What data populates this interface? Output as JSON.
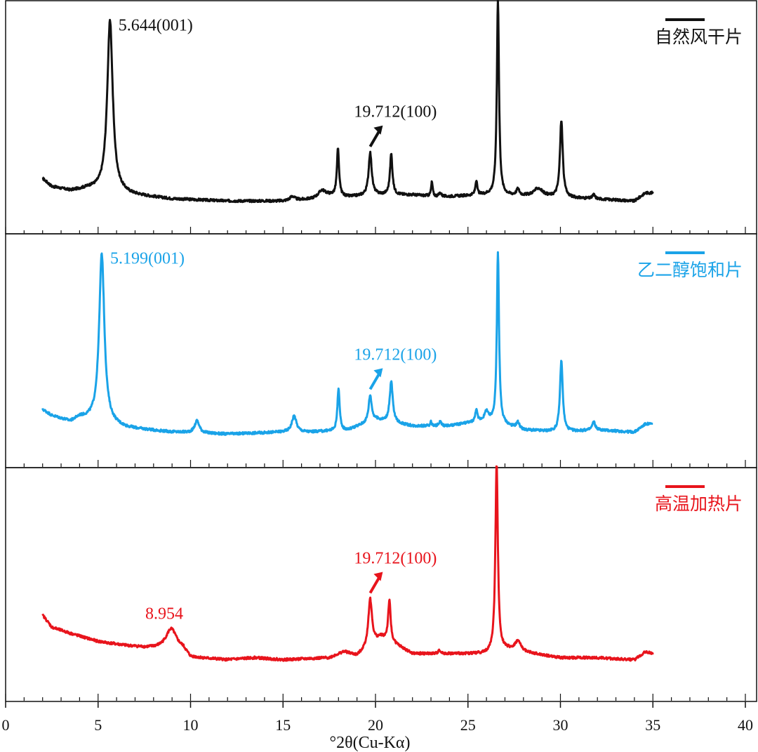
{
  "chart_data": {
    "type": "line",
    "xlabel": "°2θ(Cu-Kα)",
    "xlim": [
      0,
      40
    ],
    "x_ticks": [
      "0",
      "5",
      "10",
      "15",
      "20",
      "25",
      "30",
      "35",
      "40"
    ],
    "x_tick_values": [
      0,
      5,
      10,
      15,
      20,
      25,
      30,
      35,
      40
    ],
    "grid": false,
    "legend_placement": "top-right of each panel",
    "panels": [
      {
        "name": "自然风干片",
        "color": "#111111",
        "baseline": 0.05,
        "base_points": [
          [
            2.0,
            0.14
          ],
          [
            2.5,
            0.1
          ],
          [
            3.5,
            0.08
          ],
          [
            4.5,
            0.09
          ],
          [
            6.8,
            0.06
          ],
          [
            9,
            0.04
          ],
          [
            12,
            0.03
          ],
          [
            15,
            0.03
          ],
          [
            16.5,
            0.04
          ],
          [
            17.4,
            0.06
          ],
          [
            18.5,
            0.05
          ],
          [
            20,
            0.06
          ],
          [
            22,
            0.06
          ],
          [
            23.5,
            0.05
          ],
          [
            26,
            0.06
          ],
          [
            29,
            0.05
          ],
          [
            32,
            0.04
          ],
          [
            34,
            0.03
          ],
          [
            34.6,
            0.07
          ],
          [
            35,
            0.07
          ]
        ],
        "peaks": [
          {
            "x": 5.644,
            "h": 0.84,
            "w": 0.18
          },
          {
            "x": 15.5,
            "h": 0.02,
            "w": 0.15
          },
          {
            "x": 17.1,
            "h": 0.03,
            "w": 0.2
          },
          {
            "x": 17.97,
            "h": 0.23,
            "w": 0.07
          },
          {
            "x": 19.712,
            "h": 0.21,
            "w": 0.1
          },
          {
            "x": 20.85,
            "h": 0.2,
            "w": 0.08
          },
          {
            "x": 23.05,
            "h": 0.07,
            "w": 0.05
          },
          {
            "x": 23.5,
            "h": 0.02,
            "w": 0.08
          },
          {
            "x": 25.45,
            "h": 0.07,
            "w": 0.06
          },
          {
            "x": 26.62,
            "h": 0.96,
            "w": 0.07
          },
          {
            "x": 27.7,
            "h": 0.03,
            "w": 0.1
          },
          {
            "x": 28.8,
            "h": 0.04,
            "w": 0.3
          },
          {
            "x": 30.05,
            "h": 0.38,
            "w": 0.09
          },
          {
            "x": 31.8,
            "h": 0.02,
            "w": 0.08
          }
        ],
        "annotations": [
          {
            "text": "5.644(001)",
            "x": 5.644,
            "arrow": false
          },
          {
            "text": "19.712(100)",
            "x": 19.712,
            "arrow": true
          }
        ]
      },
      {
        "name": "乙二醇饱和片",
        "color": "#1aa3e8",
        "baseline": 0.05,
        "base_points": [
          [
            2.0,
            0.15
          ],
          [
            2.5,
            0.12
          ],
          [
            3.5,
            0.09
          ],
          [
            4.0,
            0.11
          ],
          [
            6.5,
            0.06
          ],
          [
            9,
            0.04
          ],
          [
            12,
            0.03
          ],
          [
            15,
            0.04
          ],
          [
            16.5,
            0.04
          ],
          [
            18.5,
            0.05
          ],
          [
            20,
            0.1
          ],
          [
            22,
            0.07
          ],
          [
            24,
            0.07
          ],
          [
            26,
            0.1
          ],
          [
            28,
            0.05
          ],
          [
            30,
            0.04
          ],
          [
            32,
            0.05
          ],
          [
            34,
            0.04
          ],
          [
            34.6,
            0.08
          ],
          [
            35,
            0.08
          ]
        ],
        "peaks": [
          {
            "x": 5.199,
            "h": 0.83,
            "w": 0.17
          },
          {
            "x": 10.35,
            "h": 0.06,
            "w": 0.15
          },
          {
            "x": 15.6,
            "h": 0.08,
            "w": 0.15
          },
          {
            "x": 18.0,
            "h": 0.21,
            "w": 0.07
          },
          {
            "x": 19.712,
            "h": 0.13,
            "w": 0.1
          },
          {
            "x": 20.85,
            "h": 0.2,
            "w": 0.1
          },
          {
            "x": 23.0,
            "h": 0.02,
            "w": 0.05
          },
          {
            "x": 23.5,
            "h": 0.02,
            "w": 0.08
          },
          {
            "x": 25.45,
            "h": 0.06,
            "w": 0.06
          },
          {
            "x": 26.0,
            "h": 0.04,
            "w": 0.1
          },
          {
            "x": 26.62,
            "h": 0.84,
            "w": 0.07
          },
          {
            "x": 27.7,
            "h": 0.03,
            "w": 0.1
          },
          {
            "x": 30.05,
            "h": 0.35,
            "w": 0.09
          },
          {
            "x": 31.8,
            "h": 0.04,
            "w": 0.1
          }
        ],
        "annotations": [
          {
            "text": "5.199(001)",
            "x": 5.199,
            "arrow": false
          },
          {
            "text": "19.712(100)",
            "x": 19.712,
            "arrow": true
          }
        ]
      },
      {
        "name": "高温加热片",
        "color": "#e8141c",
        "baseline": 0.05,
        "base_points": [
          [
            2.0,
            0.29
          ],
          [
            2.5,
            0.23
          ],
          [
            3.5,
            0.2
          ],
          [
            5,
            0.16
          ],
          [
            6.5,
            0.14
          ],
          [
            7.5,
            0.13
          ],
          [
            9.6,
            0.12
          ],
          [
            10,
            0.08
          ],
          [
            12,
            0.07
          ],
          [
            13.5,
            0.08
          ],
          [
            15,
            0.07
          ],
          [
            17.5,
            0.08
          ],
          [
            18.3,
            0.11
          ],
          [
            19.0,
            0.09
          ],
          [
            20.3,
            0.18
          ],
          [
            21.2,
            0.14
          ],
          [
            22,
            0.1
          ],
          [
            24,
            0.1
          ],
          [
            26,
            0.1
          ],
          [
            27.0,
            0.12
          ],
          [
            28.5,
            0.1
          ],
          [
            30,
            0.08
          ],
          [
            32,
            0.08
          ],
          [
            34,
            0.07
          ],
          [
            34.6,
            0.11
          ],
          [
            35,
            0.1
          ]
        ],
        "peaks": [
          {
            "x": 8.954,
            "h": 0.1,
            "w": 0.35
          },
          {
            "x": 19.712,
            "h": 0.23,
            "w": 0.12
          },
          {
            "x": 20.75,
            "h": 0.2,
            "w": 0.08
          },
          {
            "x": 23.45,
            "h": 0.02,
            "w": 0.06
          },
          {
            "x": 26.55,
            "h": 0.92,
            "w": 0.08
          },
          {
            "x": 27.7,
            "h": 0.05,
            "w": 0.2
          }
        ],
        "annotations": [
          {
            "text": "8.954",
            "x": 8.954,
            "arrow": false
          },
          {
            "text": "19.712(100)",
            "x": 19.712,
            "arrow": true
          }
        ]
      }
    ]
  }
}
